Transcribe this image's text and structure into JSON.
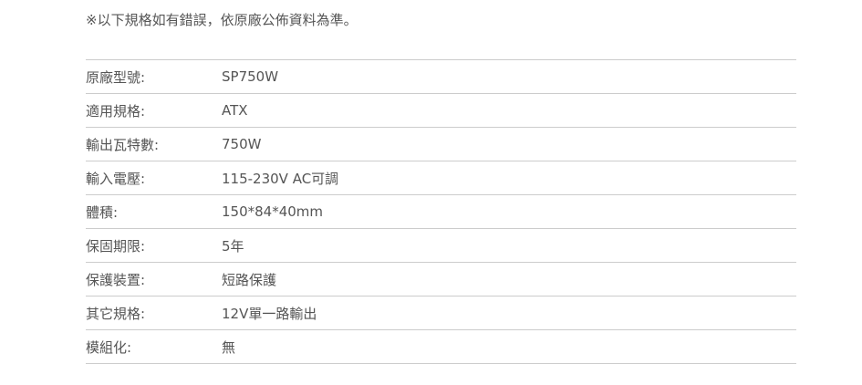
{
  "note": "※以下規格如有錯誤，依原廠公佈資料為準。",
  "specs": [
    {
      "label": "原廠型號:",
      "value": "SP750W"
    },
    {
      "label": "適用規格:",
      "value": "ATX"
    },
    {
      "label": "輸出瓦特數:",
      "value": "750W"
    },
    {
      "label": "輸入電壓:",
      "value": "115-230V AC可調"
    },
    {
      "label": "體積:",
      "value": "150*84*40mm"
    },
    {
      "label": "保固期限:",
      "value": "5年"
    },
    {
      "label": "保護裝置:",
      "value": "短路保護"
    },
    {
      "label": "其它規格:",
      "value": "12V單一路輸出"
    },
    {
      "label": "模組化:",
      "value": "無"
    }
  ]
}
